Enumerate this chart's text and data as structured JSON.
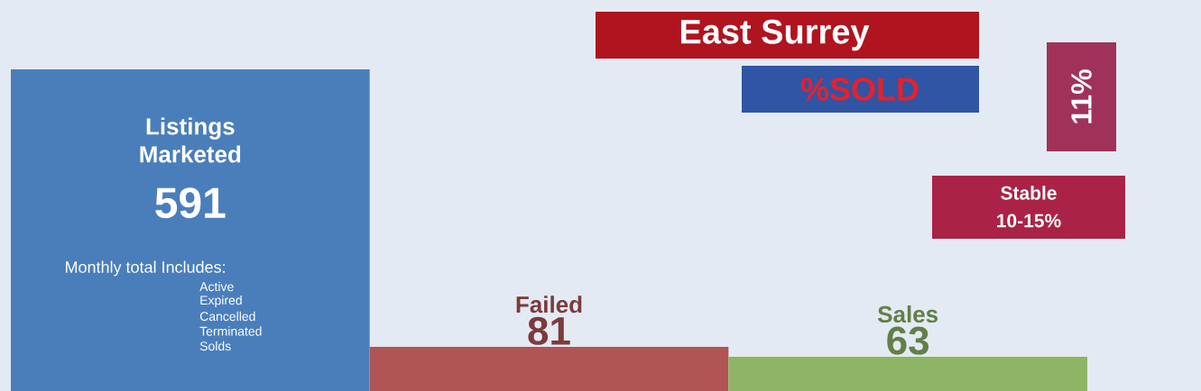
{
  "chart_data": {
    "type": "bar",
    "categories": [
      "Listings Marketed",
      "Failed",
      "Sales"
    ],
    "values": [
      591,
      81,
      63
    ],
    "colors": [
      "#4a7ebb",
      "#b05454",
      "#8db565"
    ],
    "data_labels": true,
    "annotations": [
      "East Surrey",
      "%SOLD",
      "11%",
      "Stable",
      "10-15%",
      "Monthly total Includes:",
      "Active",
      "Expired",
      "Cancelled",
      "Terminated",
      "Solds"
    ]
  }
}
